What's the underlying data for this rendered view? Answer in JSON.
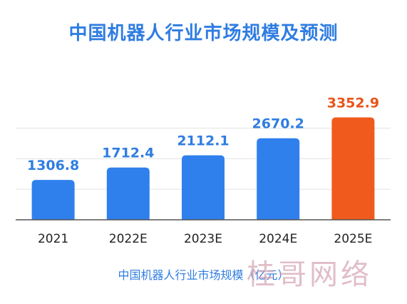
{
  "colors": {
    "title": "#2f7de1",
    "bar": "#2f80ed",
    "forecast_bar": "#f05a1c",
    "label": "#2f7de1",
    "forecast_label": "#e8541a",
    "axis": "#555555",
    "grid": "#e3e3e3",
    "tick": "#222222",
    "caption": "#2f7de1"
  },
  "watermark": "桂哥网络",
  "chart_data": {
    "type": "bar",
    "title": "中国机器人行业市场规模及预测",
    "categories": [
      "2021",
      "2022E",
      "2023E",
      "2024E",
      "2025E"
    ],
    "values": [
      1306.8,
      1712.4,
      2112.1,
      2670.2,
      3352.9
    ],
    "value_labels": [
      "1306.8",
      "1712.4",
      "2112.1",
      "2670.2",
      "3352.9"
    ],
    "highlight_index": 4,
    "xlabel": "中国机器人行业市场规模（亿元）",
    "ylabel": "",
    "ylim": [
      0,
      3500
    ],
    "grid": true,
    "legend": "none"
  }
}
